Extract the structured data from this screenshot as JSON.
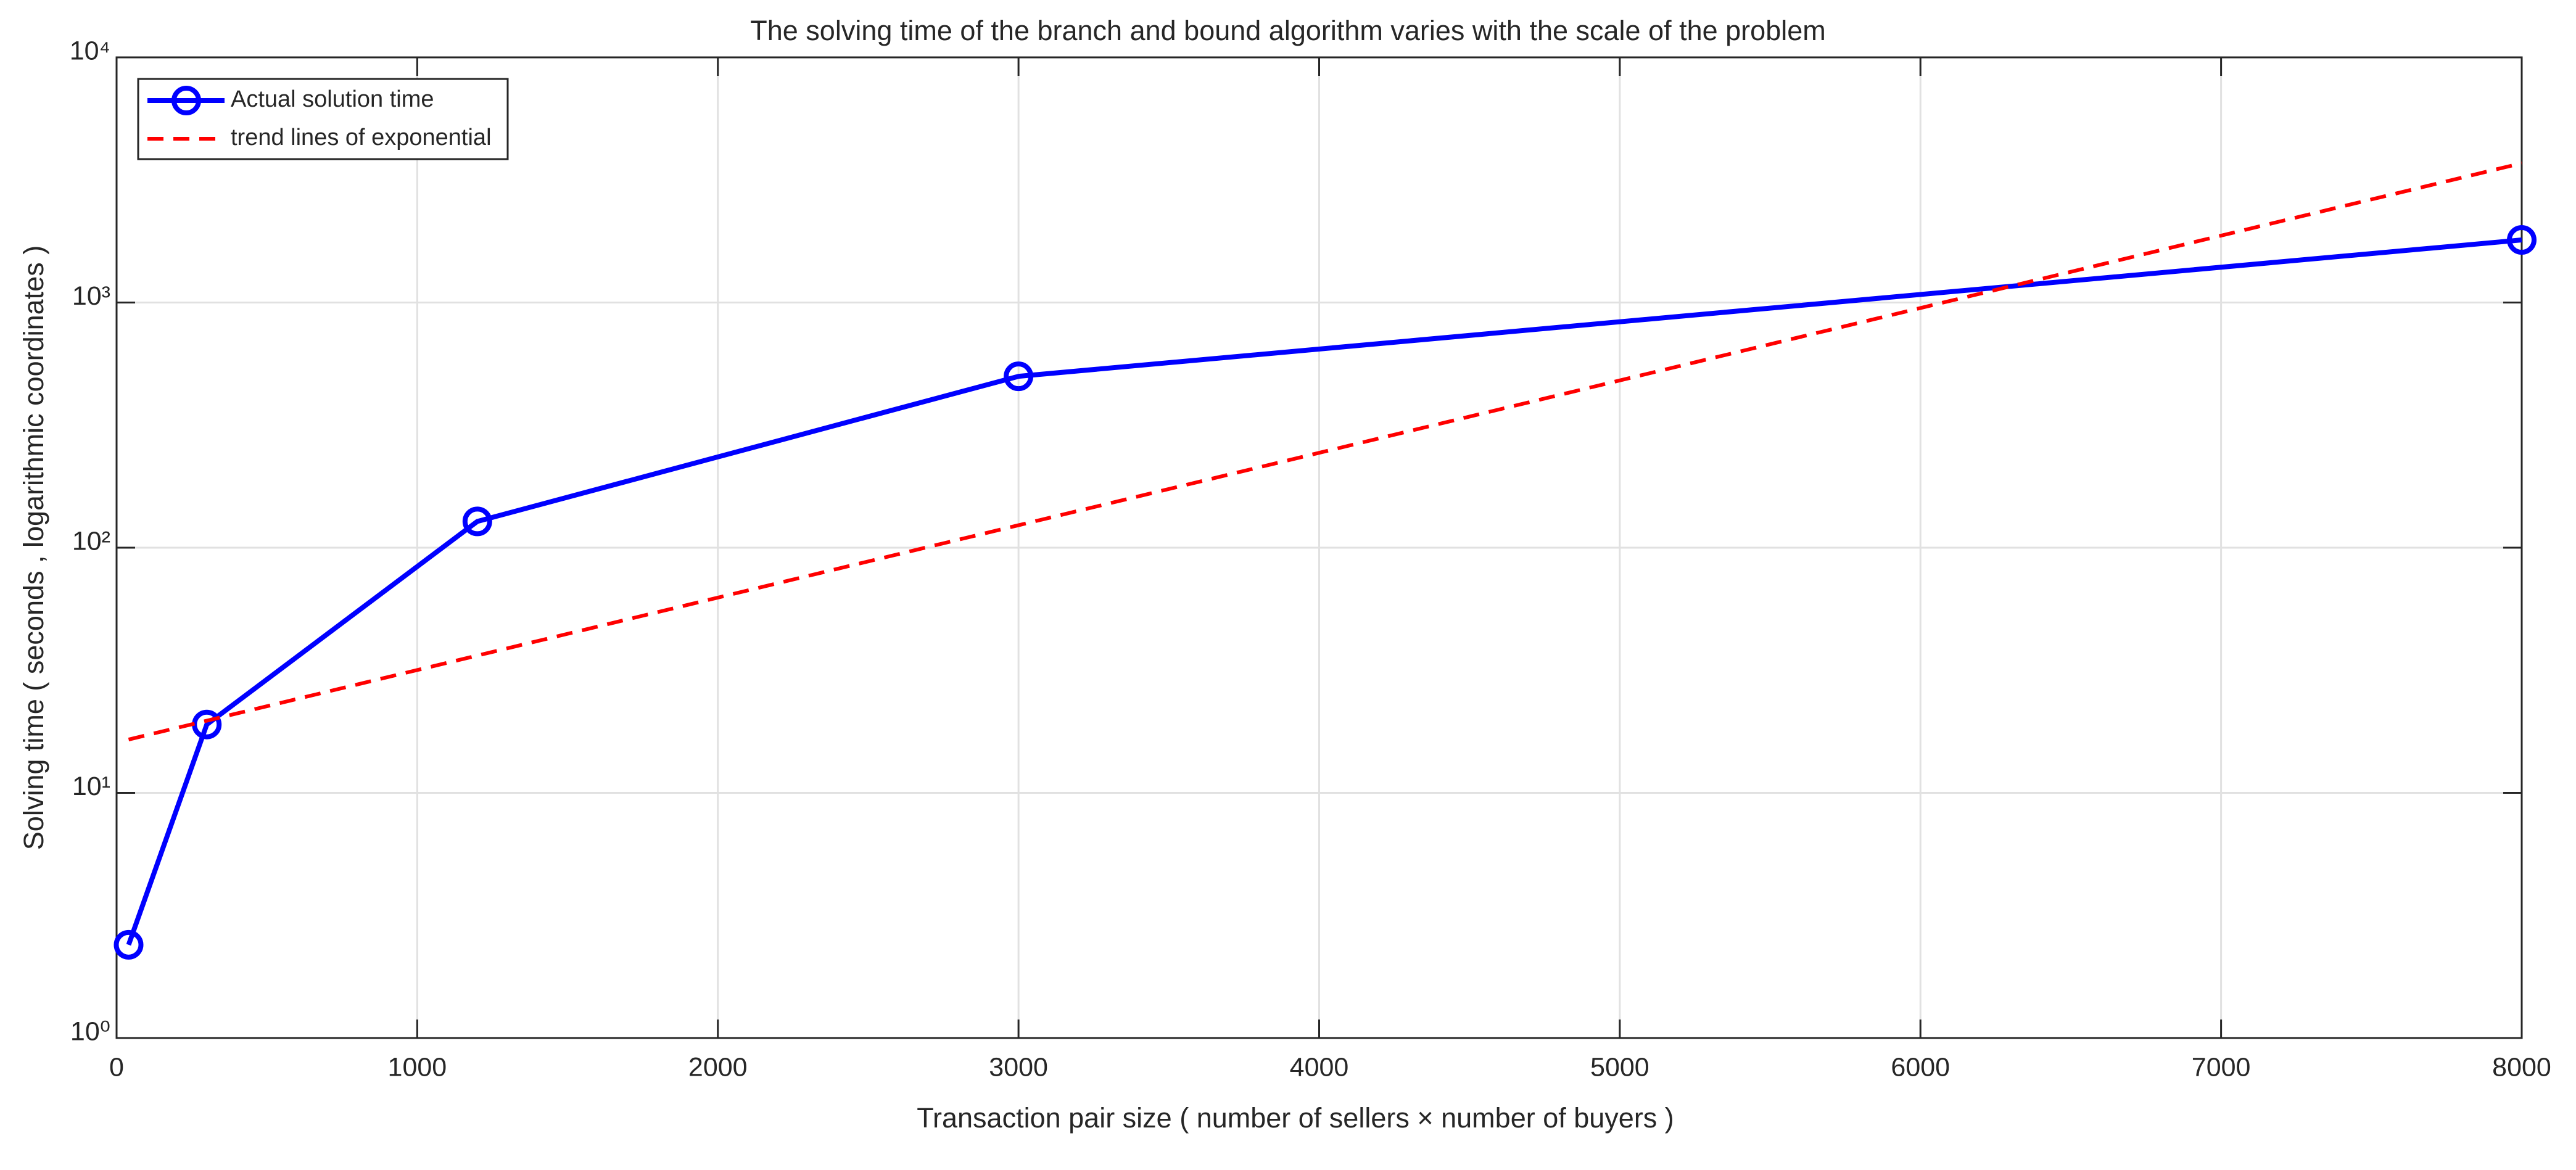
{
  "chart_data": {
    "type": "line",
    "title": "The solving time of the branch and bound algorithm varies with the scale of the problem",
    "x_label": "Transaction pair size ( number of sellers × number of buyers )",
    "y_label": "Solving time ( seconds , logarithmic coordinates )",
    "xlim": [
      0,
      8000
    ],
    "xticks": [
      0,
      1000,
      2000,
      3000,
      4000,
      5000,
      6000,
      7000,
      8000
    ],
    "ylim": [
      1,
      10000
    ],
    "yscale": "log",
    "yticks": [
      {
        "value": 1,
        "label": "10⁰"
      },
      {
        "value": 10,
        "label": "10¹"
      },
      {
        "value": 100,
        "label": "10²"
      },
      {
        "value": 1000,
        "label": "10³"
      },
      {
        "value": 10000,
        "label": "10⁴"
      }
    ],
    "grid": true,
    "legend": "upper left",
    "series": [
      {
        "name": "Actual solution time",
        "color": "#0000ff",
        "style": "solid",
        "marker": "circle",
        "x": [
          40,
          300,
          1200,
          3000,
          8000
        ],
        "values": [
          2.4,
          19,
          128,
          500,
          1800
        ]
      },
      {
        "name": "trend lines of exponential",
        "color": "#ff0000",
        "style": "dashed",
        "x": [
          40,
          8000
        ],
        "values": [
          16.5,
          3700
        ]
      }
    ]
  }
}
